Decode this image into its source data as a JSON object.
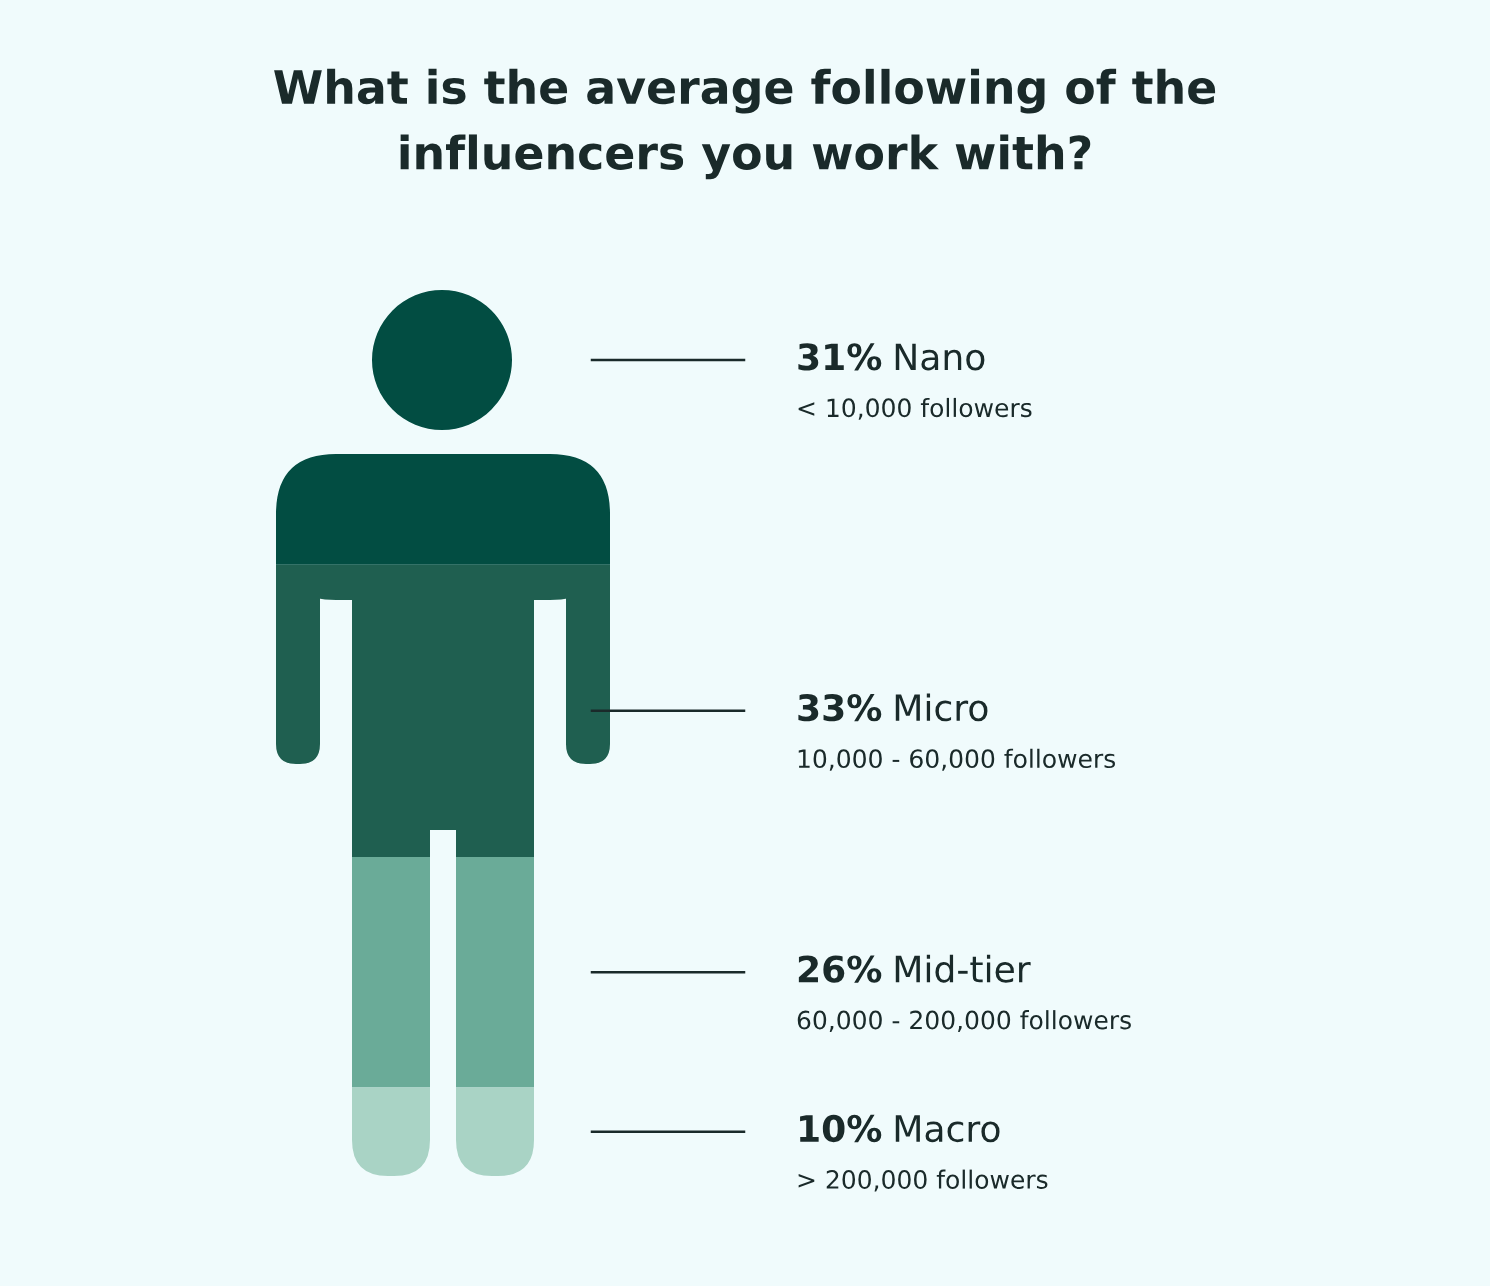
{
  "chart_data": {
    "type": "other",
    "title": "What is the average following of the\ninfluencers you work with?",
    "categories": [
      "Nano",
      "Micro",
      "Mid-tier",
      "Macro"
    ],
    "values": [
      31,
      33,
      26,
      10
    ],
    "value_labels": [
      "31%",
      "33%",
      "26%",
      "10%"
    ],
    "colors": [
      "#024d42",
      "#1f5f50",
      "#6aab98",
      "#a9d3c5"
    ],
    "annotations": [
      "< 10,000 followers",
      "10,000 - 60,000 followers",
      "60,000 - 200,000 followers",
      "> 200,000 followers"
    ]
  }
}
